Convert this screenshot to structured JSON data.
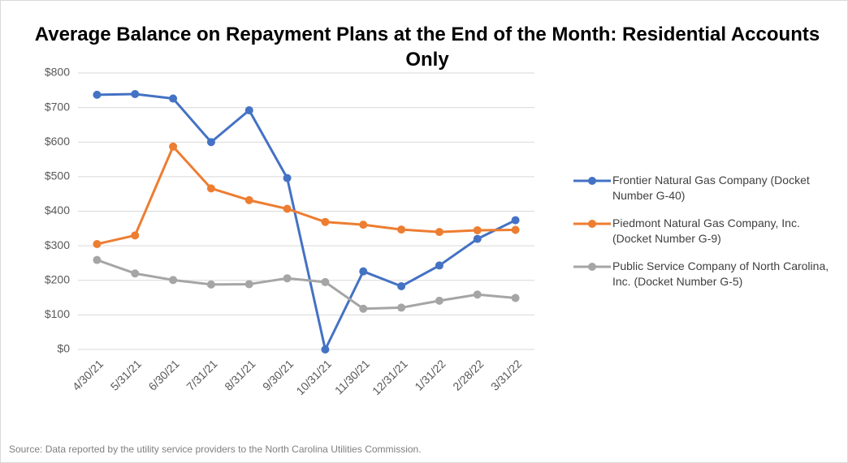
{
  "chart_data": {
    "type": "line",
    "title": "Average Balance on Repayment Plans at the End of the Month: Residential Accounts Only",
    "categories": [
      "4/30/21",
      "5/31/21",
      "6/30/21",
      "7/31/21",
      "8/31/21",
      "9/30/21",
      "10/31/21",
      "11/30/21",
      "12/31/21",
      "1/31/22",
      "2/28/22",
      "3/31/22"
    ],
    "series": [
      {
        "name": "Frontier Natural Gas Company (Docket Number G-40)",
        "color": "#4472c4",
        "values": [
          737,
          739,
          726,
          600,
          692,
          496,
          0,
          226,
          183,
          243,
          320,
          374
        ]
      },
      {
        "name": "Piedmont Natural Gas Company, Inc. (Docket Number G-9)",
        "color": "#ed7d31",
        "values": [
          305,
          330,
          587,
          466,
          432,
          407,
          369,
          361,
          347,
          340,
          345,
          346
        ]
      },
      {
        "name": "Public Service Company of North Carolina, Inc. (Docket Number G-5)",
        "color": "#a5a5a5",
        "values": [
          259,
          220,
          201,
          188,
          189,
          206,
          195,
          118,
          121,
          141,
          159,
          149
        ]
      }
    ],
    "ylim": [
      0,
      800
    ],
    "yticks": [
      {
        "value": 0,
        "label": "$0"
      },
      {
        "value": 100,
        "label": "$100"
      },
      {
        "value": 200,
        "label": "$200"
      },
      {
        "value": 300,
        "label": "$300"
      },
      {
        "value": 400,
        "label": "$400"
      },
      {
        "value": 500,
        "label": "$500"
      },
      {
        "value": 600,
        "label": "$600"
      },
      {
        "value": 700,
        "label": "$700"
      },
      {
        "value": 800,
        "label": "$800"
      }
    ],
    "grid": true,
    "legend": "right",
    "source": "Source: Data reported by the utility service providers to the North Carolina Utilities Commission."
  }
}
